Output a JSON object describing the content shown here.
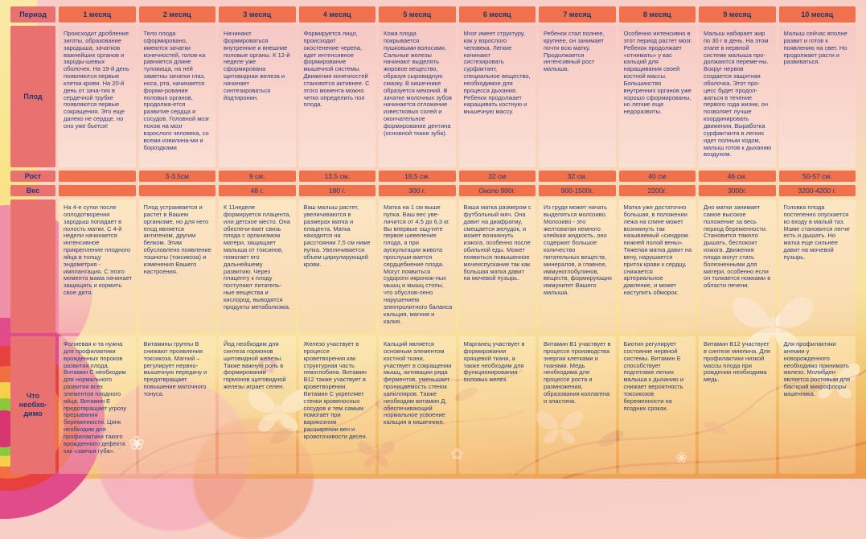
{
  "table": {
    "period_label": "Период",
    "row_labels": {
      "fetus": "Плод",
      "height": "Рост",
      "weight": "Вес",
      "needs": "Что необхо-димо"
    },
    "columns": [
      {
        "month": "1 месяц",
        "fetus": "Происходит дробление зиготы, образование зародыша, зачатков важнейших органов и зароды-шевых оболочек. На 19-й день появляются первые клетки крови. На 20-й день от зача-тия в сердечной трубке появляются первые сокращения. Это еще далеко не сердце, но оно уже бьется!",
        "height": "",
        "weight": "",
        "mother": "На 4-е сутки после оплодотворения зародыш попадает в полость матки. С 4-й недели начинается интенсивное прикрепление плодного яйца в толщу эндометрия - имплантация. С этого момента мама начинает защищать и кормить свое дитя.",
        "needs": "Фолиевая к-та  нужна для профилактики врожденных пороков развития плода. Витамин  С необходим для нормального развития всех элементов плодного яйца. Витамин  Е предотвращает угрозу прерывания беременности. Цинк необходим для профилактики такого врожденного дефекта  как «заячья губа»."
      },
      {
        "month": "2 месяц",
        "fetus": "Тело плода сформировано, имеются зачатки конечностей, голов-ка равняется длине туловища, на ней заметны зачатки глаз, носа, рта, начинается форми-рование половых органов, продолжа-ется развитие сердца и сосудов. Головной мозг похож на мозг взрослого человека, со всеми извилина-ми и бороздками",
        "height": "3-3,5см",
        "weight": "",
        "mother": "Плод устраивается и растет в Вашем организме, но для него плод  является антигеном, другим белком. Этим обусловлено появление тошноты (токсикоза) и изменения Вашего настроения.",
        "needs": "Витамины группы В снижают проявления токсикоза. Магний – регулирует нервно-мышечную передачу и предотвращает повышение маточного тонуса."
      },
      {
        "month": "3 месяц",
        "fetus": "Начинают формироваться внутренние и внешние половые органы. К 12-й неделе уже сформирована щитовидная железа и начинает синтезироваться йодтиронин.",
        "height": "9 см.",
        "weight": "48 г.",
        "mother": "К 11неделе формируется плацента, или детское место. Она обеспечи-вает связь плода с организмом матери, защищает малыша от токсинов, помогает его дальнейшему развитию. Через плаценту к плоду поступают питатель-ные вещества и кислород, выводятся продукты метаболизма.",
        "needs": "Йод необходим для синтеза гормонов щитовидной железы. Также важную роль в формировании гормонов щитовидной железы играет селен."
      },
      {
        "month": "4 месяц",
        "fetus": "Формируется лицо, происходит окостенение черепа, идет интенсивное формирование мышечной системы. Движения конечностей становятся активнее. С этого момента можно четко определить пол плода.",
        "height": "13,5 см.",
        "weight": "180 г.",
        "mother": "Ваш малыш растет, увеличиваются в размерах матка и плацента.  Матка находится  на расстоянии 7,5 см ниже пупка. Увеличивается объем циркулирующей крови.",
        "needs": "Железо участвует в процессе кроветворения как структурная часть гемоглобина. Витамин В12 также участвует в кроветворении. Витамин С укрепляет стенки кровеносных сосудов и тем самым помогает при варикозном расширении вен и кровоточивости десен."
      },
      {
        "month": "5 месяц",
        "fetus": "Кожа плода покрывается пушковыми волосами. Сальные железы начинают выделять жировое вещество, образуя сыровидную смазку. В кишечнике образуется меконий. В зачатке молочных зубов начинается отложение известковых солей и окончательное формирование дентина (основной ткани зуба).",
        "height": "18,5 см.",
        "weight": "300 г.",
        "mother": "Матка  на 1 см выше пупка. Ваш вес уве-личится  от  4,5 до 6,3 кг.  Вы впервые ощутите первое шевеление плода, а при аускультации живота прослуши-вается сердцебиение плода. Могут появиться судороги икронож-ных мышц и мышц стопы, что обуслов-лено нарушением электролитного баланса кальция, магния и калия.",
        "needs": "Кальций  является основным элементом костной ткани, участвует в сокращении мышц, активации ряда ферментов, уменьшает проницаемость стенок капилляров. Также необходим витамин Д, обеспечивающий нормальное усвоение кальция в кишечнике."
      },
      {
        "month": "6 месяц",
        "fetus": "Мозг имеет структуру, как у взрослого человека. Легкие начинают систезировать сурфактант, специальное вещество, необходимое для процесса дыхания. Ребенок продолжает наращивать костную и мышечную массу.",
        "height": "32 см",
        "weight": "Около 900г.",
        "mother": "Ваша матка размером с футбольный мяч. Она давит на диафрагму, смещается желудок, и может возникнуть изжога, особенно после обильной еды. Может появиться повышенное мочеиспускание так как большая матка давит на мочевой пузырь.",
        "needs": "Марганец участвует в формировании хрящевой ткани, а также необходим для функционирования половых желез."
      },
      {
        "month": "7 месяц",
        "fetus": "Ребенок стал полнее, крупнее, он занимает почти  всю матку. Продолжается интенсивный рост малыша.",
        "height": "32 см.",
        "weight": "900-1500г.",
        "mother": "Из груди может начать выделяться молозиво. Молозиво - это желтоватая немного клейкая жидкость, оно содержит большое количество питательных веществ, минералов, а  главное, иммуноглобулинов, веществ, формирующих иммунитет Вашего малыша.",
        "needs": "Витамин В1 участвует в процессе производства энергии клетками и тканями. Медь необходима для процессе роста и размножения, образования коллагена и эластина."
      },
      {
        "month": "8 месяц",
        "fetus": "Особенно интенсивно в этот период растет мозг. Ребенок продолжает «отнимать» у вас кальций для наращивания своей костной массы. Большинство внутренних органов уже хорошо сформированы, но легкие еще недоразвиты.",
        "height": "40 см",
        "weight": "2200г.",
        "mother": "Матка уже достаточно большая,  в положении лежа на спине может возникнуть так называемый «синдром нижней полой вены». Тяжелая матка давит на вену, нарушается приток крови к сердцу, снижается артериальное давление, и может наступить обморок.",
        "needs": "Биотин регулирует состояние нервной системы. Витамин Е способствует подготовке легких малыша к дыханию и снижает вероятность токсикозов беременности на поздних сроках."
      },
      {
        "month": "9 месяц",
        "fetus": "Малыш  набирает жир по 30 г в день. На этом этапе в нервной системе малыша про-должаются переме-ны. Вокруг нервов создается защитная оболочка.  Этот про-цесс будет продол-жаться в течение первого года жизни, он позволяет лучше координировать движения. Выработка сурфактанта в легких идет полным ходом, малыш готов к дыханию воздухом.",
        "height": "46 см.",
        "weight": "3000г.",
        "mother": "Дно матки занимает самое высокое положение за весь период беременности. Становится тяжело дышать, беспокоит изжога. Движения плода могут стать болезненными для матери, особенно если он толкается ножками в области печени.",
        "needs": "Витамин В12 участвует в синтезе миелина.  Для профилактики низкой массы плода при рождении необходима медь."
      },
      {
        "month": "10 месяц",
        "fetus": "Малыш сейчас вполне развит  и готов к появлению на свет. Но продолжает расти и развиваться.",
        "height": "50-57 см.",
        "weight": "3200-4200 г.",
        "mother": "Головка плода постепенно опускается ко входу в малый таз. Маме становится легче есть и дышать. Но матка еще сильнее давит на мочевой пузырь.",
        "needs": "Для профилактики анемии у новорожденного необходимо принимать железо. Молибден является ростовым для бакткрий микрофлоры кишечника."
      }
    ]
  }
}
